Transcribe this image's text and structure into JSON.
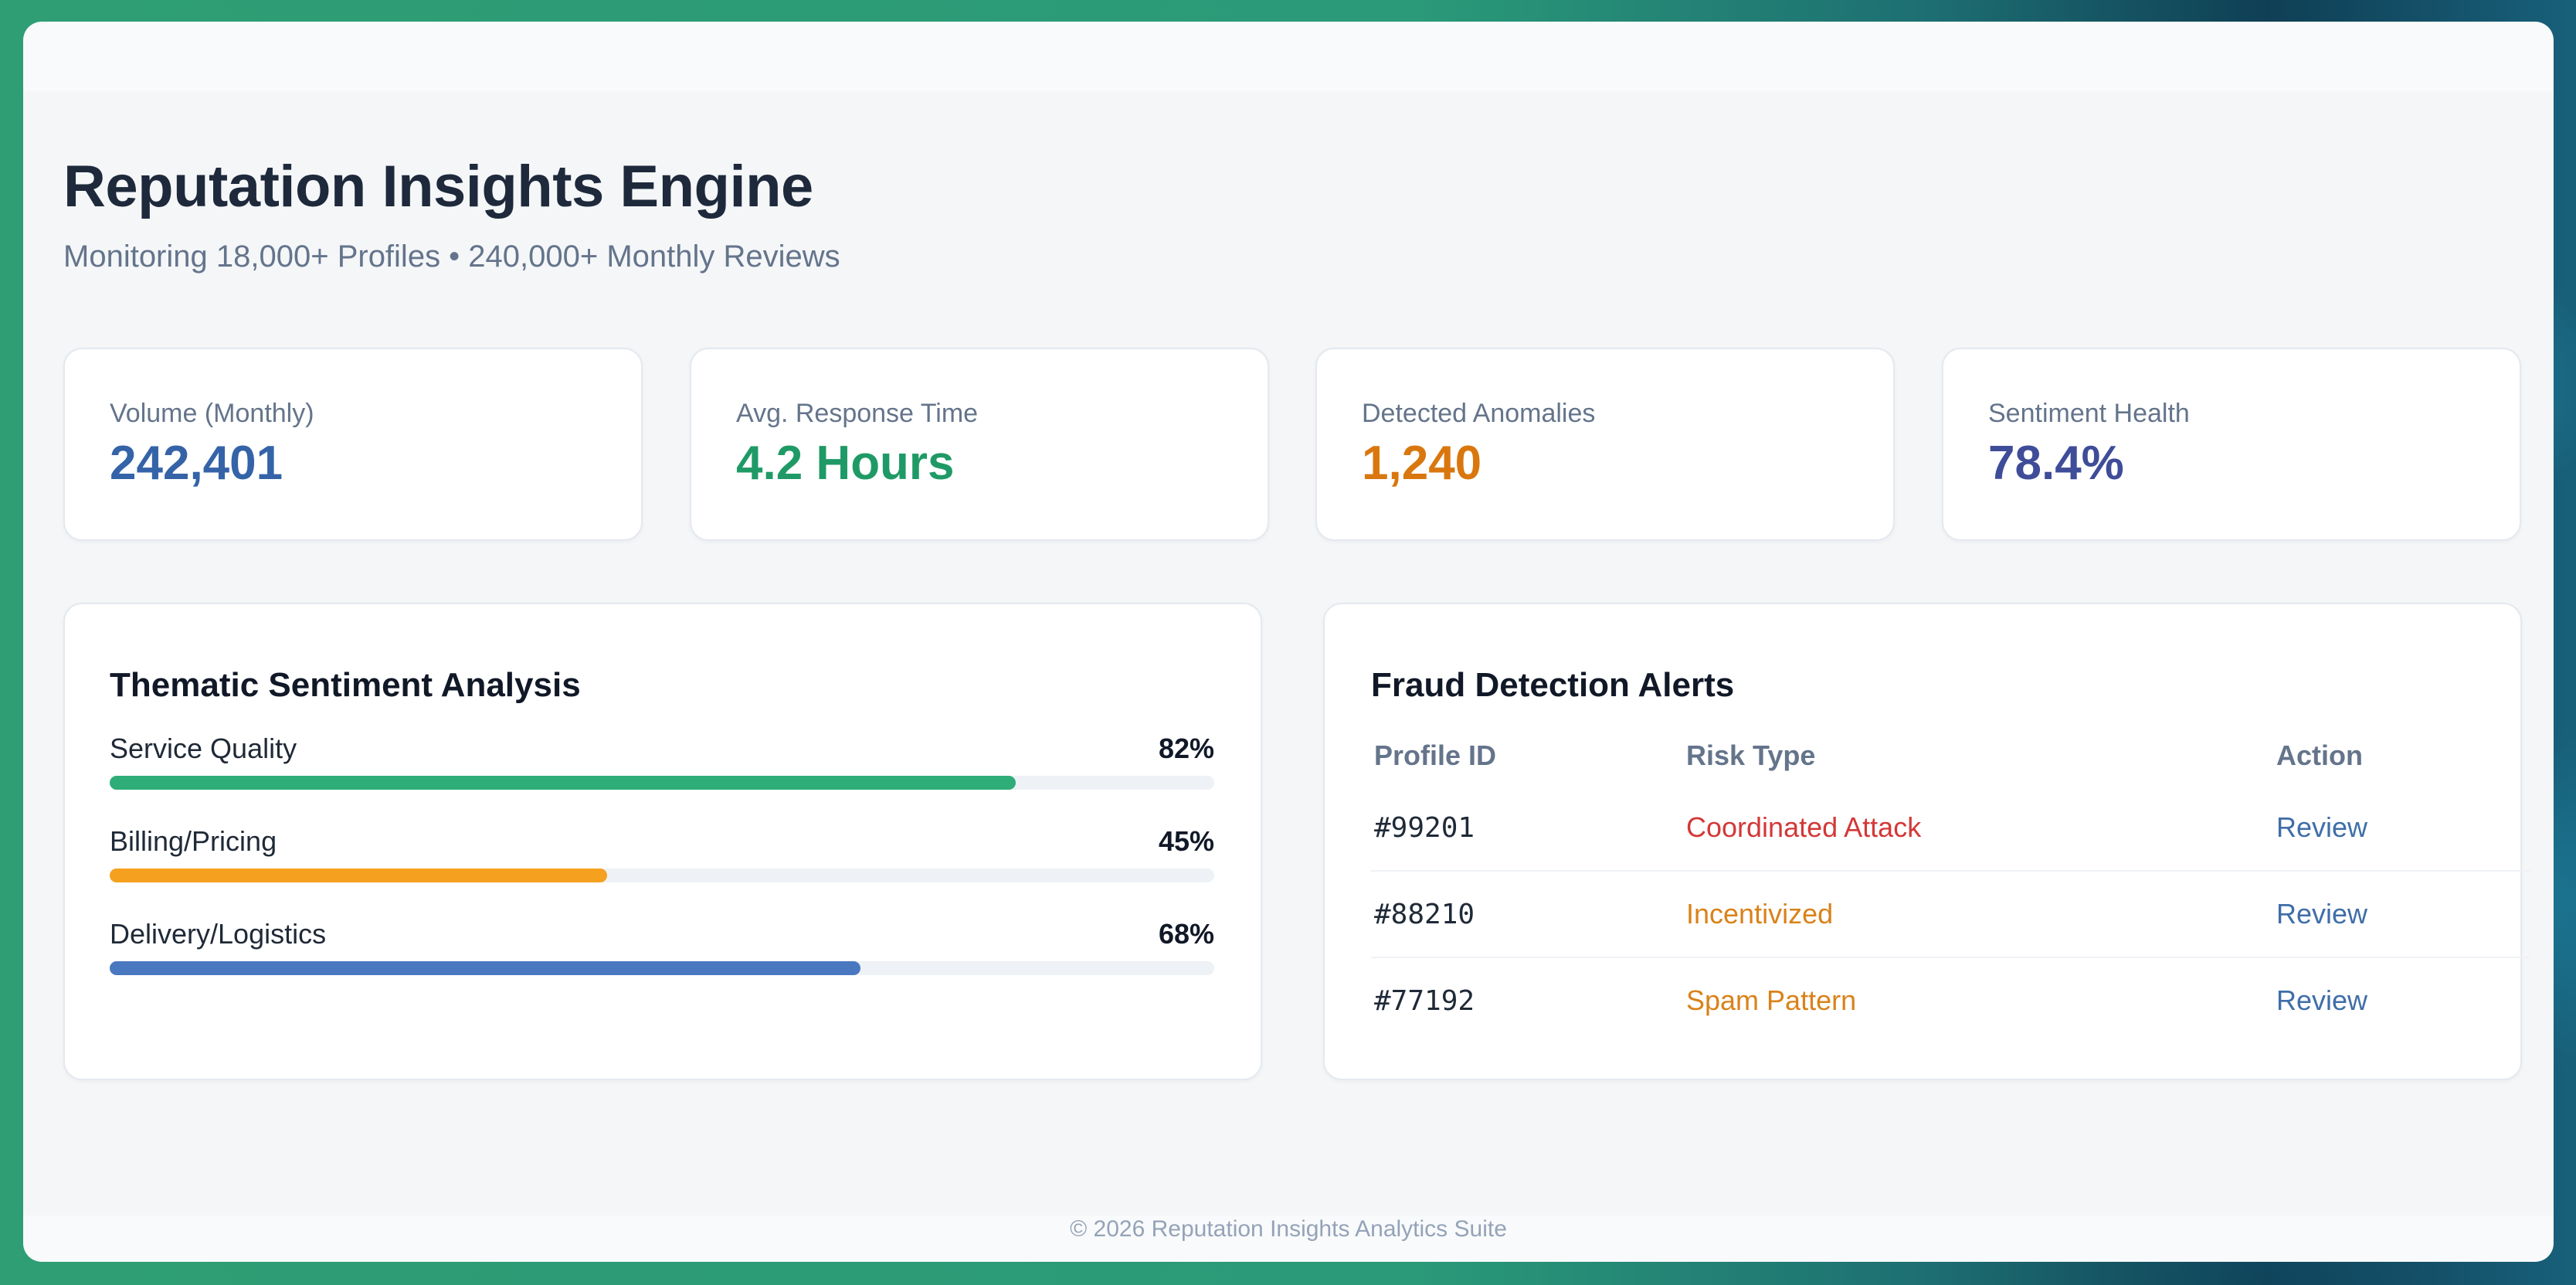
{
  "header": {
    "title": "Reputation Insights Engine",
    "subtitle": "Monitoring 18,000+ Profiles • 240,000+ Monthly Reviews"
  },
  "kpis": [
    {
      "label": "Volume (Monthly)",
      "value": "242,401",
      "color": "#3563a8"
    },
    {
      "label": "Avg. Response Time",
      "value": "4.2 Hours",
      "color": "#1f9a66"
    },
    {
      "label": "Detected Anomalies",
      "value": "1,240",
      "color": "#d9770f"
    },
    {
      "label": "Sentiment Health",
      "value": "78.4%",
      "color": "#3f4c98"
    }
  ],
  "sentiment": {
    "title": "Thematic Sentiment Analysis",
    "themes": [
      {
        "label": "Service Quality",
        "percent_text": "82%",
        "value": 82,
        "color": "#2ead78"
      },
      {
        "label": "Billing/Pricing",
        "percent_text": "45%",
        "value": 45,
        "color": "#f5a01f"
      },
      {
        "label": "Delivery/Logistics",
        "percent_text": "68%",
        "value": 68,
        "color": "#4a78c0"
      }
    ]
  },
  "fraud": {
    "title": "Fraud Detection Alerts",
    "columns": [
      "Profile ID",
      "Risk Type",
      "Action"
    ],
    "rows": [
      {
        "profile_id": "#99201",
        "risk_type": "Coordinated Attack",
        "risk_color": "#d33838",
        "action": "Review"
      },
      {
        "profile_id": "#88210",
        "risk_type": "Incentivized",
        "risk_color": "#d9821a",
        "action": "Review"
      },
      {
        "profile_id": "#77192",
        "risk_type": "Spam Pattern",
        "risk_color": "#d9821a",
        "action": "Review"
      }
    ]
  },
  "footer": {
    "text": "© 2026 Reputation Insights Analytics Suite"
  }
}
